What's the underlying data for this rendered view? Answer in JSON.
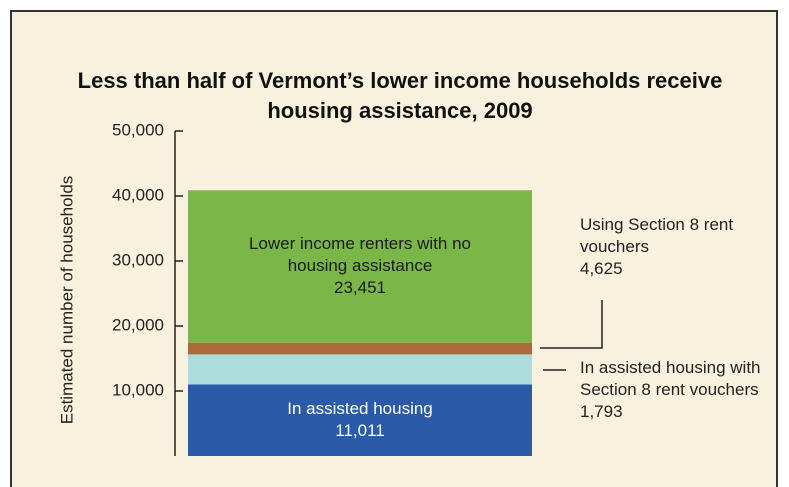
{
  "chart_data": {
    "type": "stacked_bar",
    "title": "Less than half of Vermont’s lower income households receive housing assistance, 2009",
    "y_label": "Estimated number of households",
    "ylim": [
      0,
      50000
    ],
    "yticks": [
      {
        "value": 10000,
        "label": "10,000"
      },
      {
        "value": 20000,
        "label": "20,000"
      },
      {
        "value": 30000,
        "label": "30,000"
      },
      {
        "value": 40000,
        "label": "40,000"
      },
      {
        "value": 50000,
        "label": "50,000"
      }
    ],
    "series": [
      {
        "name": "In assisted housing",
        "color": "#2b5ba8",
        "values": [
          11011
        ],
        "value_labels": [
          "11,011"
        ]
      },
      {
        "name": "Using Section 8 rent vouchers",
        "color": "#acdcdc",
        "values": [
          4625
        ],
        "value_labels": [
          "4,625"
        ]
      },
      {
        "name": "In assisted housing with Section 8 rent vouchers",
        "color": "#b0693a",
        "values": [
          1793
        ],
        "value_labels": [
          "1,793"
        ]
      },
      {
        "name": "Lower income renters with no housing assistance",
        "color": "#7ab648",
        "values": [
          23451
        ],
        "value_labels": [
          "23,451"
        ]
      }
    ]
  }
}
